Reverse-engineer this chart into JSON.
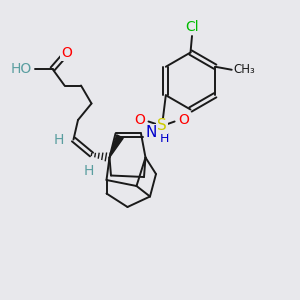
{
  "bg_color": "#e8e8ec",
  "bond_color": "#1a1a1a",
  "bond_width": 1.4,
  "dbo": 0.008,
  "atom_colors": {
    "O": "#ff0000",
    "HO": "#5a9ea0",
    "H": "#5a9ea0",
    "Cl": "#00bb00",
    "S": "#cccc00",
    "N": "#0000cc",
    "C": "#1a1a1a"
  },
  "fig_bg": "#e8e8ec"
}
